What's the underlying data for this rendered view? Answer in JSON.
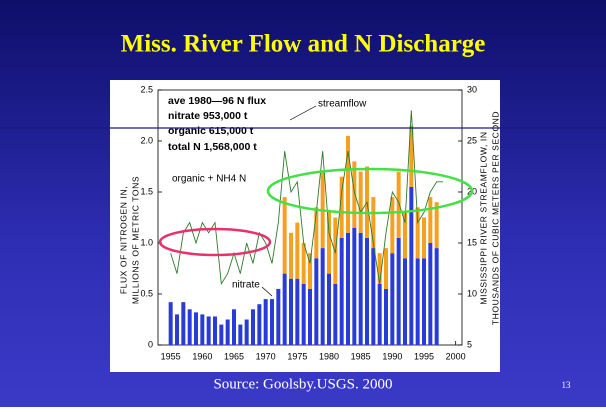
{
  "chart_data": {
    "type": "bar",
    "title": "Miss. River Flow and N Discharge",
    "annotations": [
      "ave 1980—96 N flux",
      "nitrate  953,000 t",
      "organic 615,000 t",
      "total N 1,568,000 t"
    ],
    "ylabel": [
      "FLUX OF NITROGEN IN,",
      "MILLIONS OF METRIC TONS"
    ],
    "y2label": [
      "MISSISSIPPI RIVER STREAMFLOW, IN",
      "THOUSANDS OF CUBIC METERS PER SECOND"
    ],
    "x": [
      1955,
      1956,
      1957,
      1958,
      1959,
      1960,
      1961,
      1962,
      1963,
      1964,
      1965,
      1966,
      1967,
      1968,
      1969,
      1970,
      1971,
      1972,
      1973,
      1974,
      1975,
      1976,
      1977,
      1978,
      1979,
      1980,
      1981,
      1982,
      1983,
      1984,
      1985,
      1986,
      1987,
      1988,
      1989,
      1990,
      1991,
      1992,
      1993,
      1994,
      1995,
      1996,
      1997,
      1998
    ],
    "xlim": [
      1953,
      2001
    ],
    "xticks": [
      1955,
      1960,
      1965,
      1970,
      1975,
      1980,
      1985,
      1990,
      1995,
      2000
    ],
    "ylim": [
      0,
      2.5
    ],
    "yticks": [
      0,
      0.5,
      {
        "value": 1,
        "label": "1.0"
      },
      1.5,
      {
        "value": 2,
        "label": "2.0"
      },
      2.5
    ],
    "y2lim": [
      5,
      30
    ],
    "y2ticks": [
      5,
      10,
      15,
      20,
      25,
      30
    ],
    "series": [
      {
        "name": "nitrate",
        "color": "#2a3cd8",
        "values": [
          0.42,
          0.3,
          0.42,
          0.35,
          0.32,
          0.3,
          0.28,
          0.28,
          0.2,
          0.25,
          0.35,
          0.2,
          0.25,
          0.35,
          0.4,
          0.45,
          0.45,
          0.55,
          0.7,
          0.65,
          0.65,
          0.6,
          0.55,
          0.85,
          0.95,
          0.7,
          0.6,
          1.05,
          1.1,
          1.15,
          1.1,
          1.05,
          0.95,
          0.6,
          0.55,
          0.9,
          1.05,
          0.85,
          1.55,
          0.85,
          0.85,
          1.0,
          0.95,
          null
        ]
      },
      {
        "name": "organic + NH4 N",
        "color": "#f5a020",
        "values": [
          null,
          null,
          null,
          null,
          null,
          null,
          null,
          null,
          null,
          null,
          null,
          null,
          null,
          null,
          null,
          null,
          null,
          null,
          0.75,
          0.45,
          0.55,
          0.4,
          0.35,
          0.5,
          0.75,
          0.6,
          0.65,
          0.6,
          0.95,
          0.65,
          0.6,
          0.7,
          0.5,
          0.3,
          0.4,
          0.55,
          0.65,
          0.45,
          0.6,
          0.5,
          0.4,
          0.45,
          0.45,
          null
        ]
      },
      {
        "name": "streamflow",
        "color": "#2e7a2e",
        "axis": "y2",
        "values": [
          14,
          12,
          16,
          17,
          15,
          17,
          16,
          17,
          11,
          12,
          14,
          12,
          15,
          13,
          16,
          15,
          13,
          17,
          24,
          20,
          21,
          15,
          13,
          18,
          24,
          16,
          14,
          20,
          24,
          20,
          18,
          19,
          15,
          11,
          16,
          20,
          19,
          17,
          28,
          17,
          18,
          20,
          21,
          21
        ]
      }
    ]
  },
  "source": "Source: Goolsby.USGS. 2000",
  "slide_number": "13"
}
